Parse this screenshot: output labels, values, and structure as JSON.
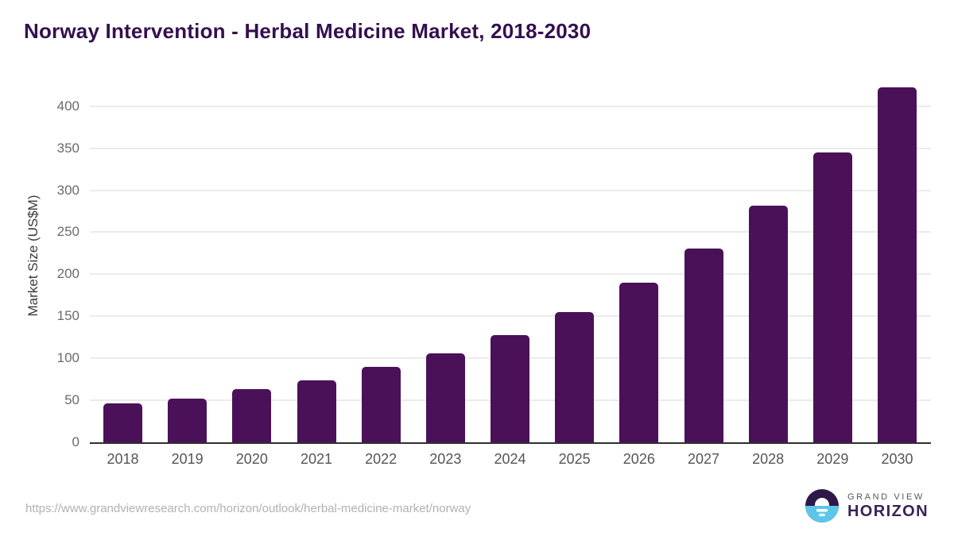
{
  "chart_data": {
    "type": "bar",
    "title": "Norway Intervention - Herbal Medicine Market, 2018-2030",
    "categories": [
      "2018",
      "2019",
      "2020",
      "2021",
      "2022",
      "2023",
      "2024",
      "2025",
      "2026",
      "2027",
      "2028",
      "2029",
      "2030"
    ],
    "values": [
      46,
      52,
      63,
      74,
      90,
      106,
      128,
      155,
      190,
      231,
      282,
      345,
      422
    ],
    "series_name": "Market Size",
    "xlabel": "",
    "ylabel": "Market Size (US$M)",
    "ylim": [
      0,
      430
    ],
    "yticks": [
      0,
      50,
      100,
      150,
      200,
      250,
      300,
      350,
      400
    ],
    "grid": true,
    "legend": false
  },
  "footer": {
    "source_url": "https://www.grandviewresearch.com/horizon/outlook/herbal-medicine-market/norway",
    "logo": {
      "name": "Grand View Horizon",
      "line1": "GRAND VIEW",
      "line2": "HORIZON"
    }
  },
  "colors": {
    "bar": "#4A1158",
    "title": "#33104F",
    "axis_line": "#2F2F2F",
    "gridline": "#EBEBEB",
    "ytick_label": "#6B6B6B",
    "xtick_label": "#555555",
    "ylabel_text": "#3A3A3A",
    "url_text": "#B3B0B0",
    "logo_dark": "#2D1947",
    "logo_blue": "#5BC6EA",
    "logo_gray": "#585460",
    "logo_purple": "#3A2257"
  }
}
